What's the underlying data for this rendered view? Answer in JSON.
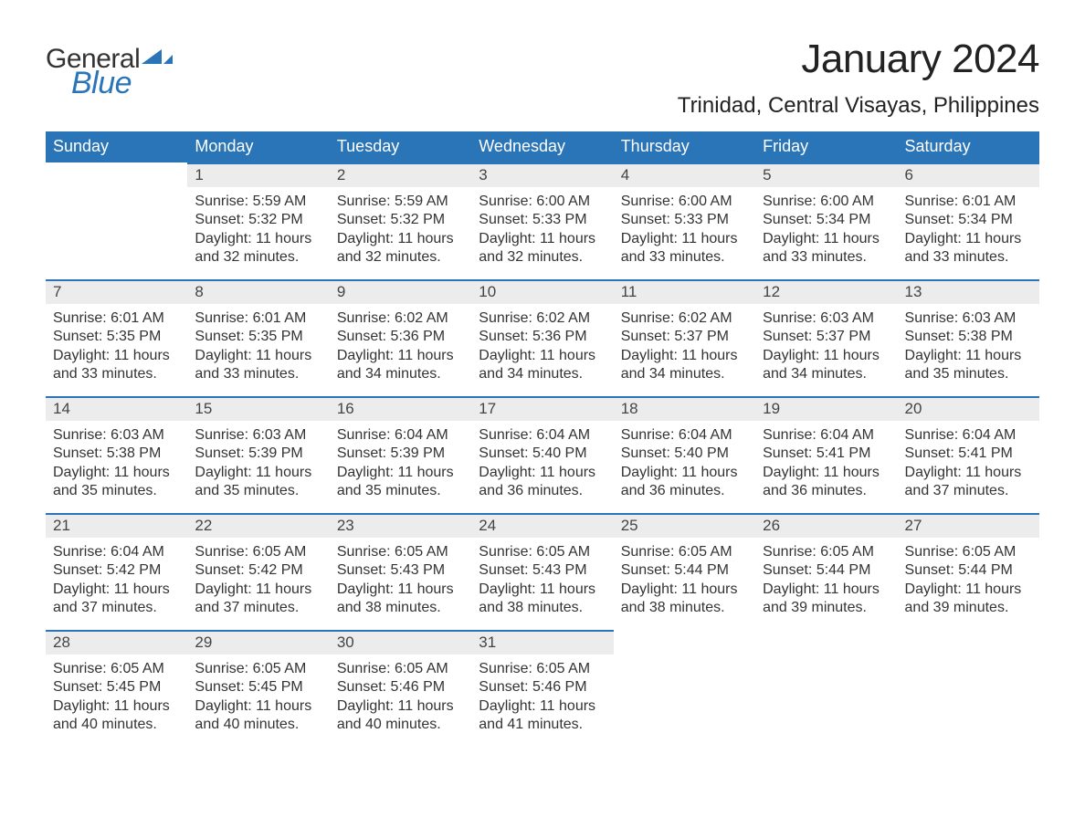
{
  "brand": {
    "word1": "General",
    "word2": "Blue",
    "flag_color": "#2a74b8"
  },
  "title": "January 2024",
  "location": "Trinidad, Central Visayas, Philippines",
  "colors": {
    "header_bg": "#2a74b8",
    "header_text": "#ffffff",
    "daynum_bg": "#ececec",
    "daynum_border": "#2a74b8",
    "body_text": "#333333",
    "page_bg": "#ffffff"
  },
  "weekdays": [
    "Sunday",
    "Monday",
    "Tuesday",
    "Wednesday",
    "Thursday",
    "Friday",
    "Saturday"
  ],
  "weeks": [
    [
      {
        "n": "",
        "sunrise": "",
        "sunset": "",
        "daylight": ""
      },
      {
        "n": "1",
        "sunrise": "Sunrise: 5:59 AM",
        "sunset": "Sunset: 5:32 PM",
        "daylight": "Daylight: 11 hours and 32 minutes."
      },
      {
        "n": "2",
        "sunrise": "Sunrise: 5:59 AM",
        "sunset": "Sunset: 5:32 PM",
        "daylight": "Daylight: 11 hours and 32 minutes."
      },
      {
        "n": "3",
        "sunrise": "Sunrise: 6:00 AM",
        "sunset": "Sunset: 5:33 PM",
        "daylight": "Daylight: 11 hours and 32 minutes."
      },
      {
        "n": "4",
        "sunrise": "Sunrise: 6:00 AM",
        "sunset": "Sunset: 5:33 PM",
        "daylight": "Daylight: 11 hours and 33 minutes."
      },
      {
        "n": "5",
        "sunrise": "Sunrise: 6:00 AM",
        "sunset": "Sunset: 5:34 PM",
        "daylight": "Daylight: 11 hours and 33 minutes."
      },
      {
        "n": "6",
        "sunrise": "Sunrise: 6:01 AM",
        "sunset": "Sunset: 5:34 PM",
        "daylight": "Daylight: 11 hours and 33 minutes."
      }
    ],
    [
      {
        "n": "7",
        "sunrise": "Sunrise: 6:01 AM",
        "sunset": "Sunset: 5:35 PM",
        "daylight": "Daylight: 11 hours and 33 minutes."
      },
      {
        "n": "8",
        "sunrise": "Sunrise: 6:01 AM",
        "sunset": "Sunset: 5:35 PM",
        "daylight": "Daylight: 11 hours and 33 minutes."
      },
      {
        "n": "9",
        "sunrise": "Sunrise: 6:02 AM",
        "sunset": "Sunset: 5:36 PM",
        "daylight": "Daylight: 11 hours and 34 minutes."
      },
      {
        "n": "10",
        "sunrise": "Sunrise: 6:02 AM",
        "sunset": "Sunset: 5:36 PM",
        "daylight": "Daylight: 11 hours and 34 minutes."
      },
      {
        "n": "11",
        "sunrise": "Sunrise: 6:02 AM",
        "sunset": "Sunset: 5:37 PM",
        "daylight": "Daylight: 11 hours and 34 minutes."
      },
      {
        "n": "12",
        "sunrise": "Sunrise: 6:03 AM",
        "sunset": "Sunset: 5:37 PM",
        "daylight": "Daylight: 11 hours and 34 minutes."
      },
      {
        "n": "13",
        "sunrise": "Sunrise: 6:03 AM",
        "sunset": "Sunset: 5:38 PM",
        "daylight": "Daylight: 11 hours and 35 minutes."
      }
    ],
    [
      {
        "n": "14",
        "sunrise": "Sunrise: 6:03 AM",
        "sunset": "Sunset: 5:38 PM",
        "daylight": "Daylight: 11 hours and 35 minutes."
      },
      {
        "n": "15",
        "sunrise": "Sunrise: 6:03 AM",
        "sunset": "Sunset: 5:39 PM",
        "daylight": "Daylight: 11 hours and 35 minutes."
      },
      {
        "n": "16",
        "sunrise": "Sunrise: 6:04 AM",
        "sunset": "Sunset: 5:39 PM",
        "daylight": "Daylight: 11 hours and 35 minutes."
      },
      {
        "n": "17",
        "sunrise": "Sunrise: 6:04 AM",
        "sunset": "Sunset: 5:40 PM",
        "daylight": "Daylight: 11 hours and 36 minutes."
      },
      {
        "n": "18",
        "sunrise": "Sunrise: 6:04 AM",
        "sunset": "Sunset: 5:40 PM",
        "daylight": "Daylight: 11 hours and 36 minutes."
      },
      {
        "n": "19",
        "sunrise": "Sunrise: 6:04 AM",
        "sunset": "Sunset: 5:41 PM",
        "daylight": "Daylight: 11 hours and 36 minutes."
      },
      {
        "n": "20",
        "sunrise": "Sunrise: 6:04 AM",
        "sunset": "Sunset: 5:41 PM",
        "daylight": "Daylight: 11 hours and 37 minutes."
      }
    ],
    [
      {
        "n": "21",
        "sunrise": "Sunrise: 6:04 AM",
        "sunset": "Sunset: 5:42 PM",
        "daylight": "Daylight: 11 hours and 37 minutes."
      },
      {
        "n": "22",
        "sunrise": "Sunrise: 6:05 AM",
        "sunset": "Sunset: 5:42 PM",
        "daylight": "Daylight: 11 hours and 37 minutes."
      },
      {
        "n": "23",
        "sunrise": "Sunrise: 6:05 AM",
        "sunset": "Sunset: 5:43 PM",
        "daylight": "Daylight: 11 hours and 38 minutes."
      },
      {
        "n": "24",
        "sunrise": "Sunrise: 6:05 AM",
        "sunset": "Sunset: 5:43 PM",
        "daylight": "Daylight: 11 hours and 38 minutes."
      },
      {
        "n": "25",
        "sunrise": "Sunrise: 6:05 AM",
        "sunset": "Sunset: 5:44 PM",
        "daylight": "Daylight: 11 hours and 38 minutes."
      },
      {
        "n": "26",
        "sunrise": "Sunrise: 6:05 AM",
        "sunset": "Sunset: 5:44 PM",
        "daylight": "Daylight: 11 hours and 39 minutes."
      },
      {
        "n": "27",
        "sunrise": "Sunrise: 6:05 AM",
        "sunset": "Sunset: 5:44 PM",
        "daylight": "Daylight: 11 hours and 39 minutes."
      }
    ],
    [
      {
        "n": "28",
        "sunrise": "Sunrise: 6:05 AM",
        "sunset": "Sunset: 5:45 PM",
        "daylight": "Daylight: 11 hours and 40 minutes."
      },
      {
        "n": "29",
        "sunrise": "Sunrise: 6:05 AM",
        "sunset": "Sunset: 5:45 PM",
        "daylight": "Daylight: 11 hours and 40 minutes."
      },
      {
        "n": "30",
        "sunrise": "Sunrise: 6:05 AM",
        "sunset": "Sunset: 5:46 PM",
        "daylight": "Daylight: 11 hours and 40 minutes."
      },
      {
        "n": "31",
        "sunrise": "Sunrise: 6:05 AM",
        "sunset": "Sunset: 5:46 PM",
        "daylight": "Daylight: 11 hours and 41 minutes."
      },
      {
        "n": "",
        "sunrise": "",
        "sunset": "",
        "daylight": ""
      },
      {
        "n": "",
        "sunrise": "",
        "sunset": "",
        "daylight": ""
      },
      {
        "n": "",
        "sunrise": "",
        "sunset": "",
        "daylight": ""
      }
    ]
  ]
}
